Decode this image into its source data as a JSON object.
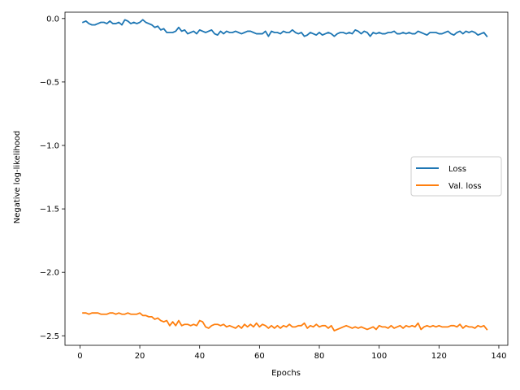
{
  "chart_data": {
    "type": "line",
    "xlabel": "Epochs",
    "ylabel": "Negative log-likelihood",
    "xlim": [
      -5,
      143
    ],
    "ylim": [
      -2.575,
      0.05
    ],
    "xticks": [
      0,
      20,
      40,
      60,
      80,
      100,
      120,
      140
    ],
    "yticks": [
      0.0,
      -0.5,
      -1.0,
      -1.5,
      -2.0,
      -2.5
    ],
    "xtick_labels": [
      "0",
      "20",
      "40",
      "60",
      "80",
      "100",
      "120",
      "140"
    ],
    "ytick_labels": [
      "0.0",
      "−0.5",
      "−1.0",
      "−1.5",
      "−2.0",
      "−2.5"
    ],
    "grid": false,
    "legend_position": "center-right",
    "series": [
      {
        "name": "Loss",
        "color": "#1f77b4",
        "x": [
          1,
          2,
          3,
          4,
          5,
          6,
          7,
          8,
          9,
          10,
          11,
          12,
          13,
          14,
          15,
          16,
          17,
          18,
          19,
          20,
          21,
          22,
          23,
          24,
          25,
          26,
          27,
          28,
          29,
          30,
          31,
          32,
          33,
          34,
          35,
          36,
          37,
          38,
          39,
          40,
          41,
          42,
          43,
          44,
          45,
          46,
          47,
          48,
          49,
          50,
          51,
          52,
          53,
          54,
          55,
          56,
          57,
          58,
          59,
          60,
          61,
          62,
          63,
          64,
          65,
          66,
          67,
          68,
          69,
          70,
          71,
          72,
          73,
          74,
          75,
          76,
          77,
          78,
          79,
          80,
          81,
          82,
          83,
          84,
          85,
          86,
          87,
          88,
          89,
          90,
          91,
          92,
          93,
          94,
          95,
          96,
          97,
          98,
          99,
          100,
          101,
          102,
          103,
          104,
          105,
          106,
          107,
          108,
          109,
          110,
          111,
          112,
          113,
          114,
          115,
          116,
          117,
          118,
          119,
          120,
          121,
          122,
          123,
          124,
          125,
          126,
          127,
          128,
          129,
          130,
          131,
          132,
          133,
          134,
          135,
          136
        ],
        "y": [
          -0.03,
          -0.02,
          -0.04,
          -0.05,
          -0.05,
          -0.04,
          -0.03,
          -0.03,
          -0.04,
          -0.02,
          -0.04,
          -0.04,
          -0.03,
          -0.05,
          -0.01,
          -0.02,
          -0.04,
          -0.03,
          -0.04,
          -0.03,
          -0.01,
          -0.03,
          -0.04,
          -0.05,
          -0.07,
          -0.06,
          -0.09,
          -0.08,
          -0.11,
          -0.11,
          -0.11,
          -0.1,
          -0.07,
          -0.1,
          -0.09,
          -0.12,
          -0.11,
          -0.1,
          -0.12,
          -0.09,
          -0.1,
          -0.11,
          -0.1,
          -0.09,
          -0.12,
          -0.13,
          -0.1,
          -0.12,
          -0.1,
          -0.11,
          -0.11,
          -0.1,
          -0.11,
          -0.12,
          -0.11,
          -0.1,
          -0.1,
          -0.11,
          -0.12,
          -0.12,
          -0.12,
          -0.1,
          -0.14,
          -0.1,
          -0.11,
          -0.11,
          -0.12,
          -0.1,
          -0.11,
          -0.11,
          -0.09,
          -0.11,
          -0.12,
          -0.11,
          -0.14,
          -0.13,
          -0.11,
          -0.12,
          -0.13,
          -0.11,
          -0.13,
          -0.12,
          -0.11,
          -0.12,
          -0.14,
          -0.12,
          -0.11,
          -0.11,
          -0.12,
          -0.11,
          -0.12,
          -0.09,
          -0.1,
          -0.12,
          -0.1,
          -0.11,
          -0.14,
          -0.11,
          -0.12,
          -0.11,
          -0.12,
          -0.12,
          -0.11,
          -0.11,
          -0.1,
          -0.12,
          -0.12,
          -0.11,
          -0.12,
          -0.11,
          -0.12,
          -0.12,
          -0.1,
          -0.11,
          -0.12,
          -0.13,
          -0.11,
          -0.11,
          -0.11,
          -0.12,
          -0.12,
          -0.11,
          -0.1,
          -0.12,
          -0.13,
          -0.11,
          -0.1,
          -0.12,
          -0.1,
          -0.11,
          -0.1,
          -0.11,
          -0.13,
          -0.12,
          -0.11,
          -0.14
        ]
      },
      {
        "name": "Val. loss",
        "color": "#ff7f0e",
        "x": [
          1,
          2,
          3,
          4,
          5,
          6,
          7,
          8,
          9,
          10,
          11,
          12,
          13,
          14,
          15,
          16,
          17,
          18,
          19,
          20,
          21,
          22,
          23,
          24,
          25,
          26,
          27,
          28,
          29,
          30,
          31,
          32,
          33,
          34,
          35,
          36,
          37,
          38,
          39,
          40,
          41,
          42,
          43,
          44,
          45,
          46,
          47,
          48,
          49,
          50,
          51,
          52,
          53,
          54,
          55,
          56,
          57,
          58,
          59,
          60,
          61,
          62,
          63,
          64,
          65,
          66,
          67,
          68,
          69,
          70,
          71,
          72,
          73,
          74,
          75,
          76,
          77,
          78,
          79,
          80,
          81,
          82,
          83,
          84,
          85,
          86,
          87,
          88,
          89,
          90,
          91,
          92,
          93,
          94,
          95,
          96,
          97,
          98,
          99,
          100,
          101,
          102,
          103,
          104,
          105,
          106,
          107,
          108,
          109,
          110,
          111,
          112,
          113,
          114,
          115,
          116,
          117,
          118,
          119,
          120,
          121,
          122,
          123,
          124,
          125,
          126,
          127,
          128,
          129,
          130,
          131,
          132,
          133,
          134,
          135,
          136
        ],
        "y": [
          -2.32,
          -2.32,
          -2.33,
          -2.32,
          -2.32,
          -2.32,
          -2.33,
          -2.33,
          -2.33,
          -2.32,
          -2.32,
          -2.33,
          -2.32,
          -2.33,
          -2.33,
          -2.32,
          -2.33,
          -2.33,
          -2.33,
          -2.32,
          -2.34,
          -2.34,
          -2.35,
          -2.35,
          -2.37,
          -2.36,
          -2.38,
          -2.39,
          -2.38,
          -2.42,
          -2.39,
          -2.42,
          -2.38,
          -2.42,
          -2.41,
          -2.41,
          -2.42,
          -2.41,
          -2.42,
          -2.38,
          -2.39,
          -2.43,
          -2.44,
          -2.42,
          -2.41,
          -2.41,
          -2.42,
          -2.41,
          -2.43,
          -2.42,
          -2.43,
          -2.44,
          -2.42,
          -2.44,
          -2.41,
          -2.43,
          -2.41,
          -2.43,
          -2.4,
          -2.43,
          -2.41,
          -2.42,
          -2.44,
          -2.42,
          -2.44,
          -2.42,
          -2.44,
          -2.42,
          -2.43,
          -2.41,
          -2.43,
          -2.43,
          -2.42,
          -2.42,
          -2.4,
          -2.44,
          -2.42,
          -2.43,
          -2.41,
          -2.43,
          -2.42,
          -2.42,
          -2.44,
          -2.42,
          -2.46,
          -2.45,
          -2.44,
          -2.43,
          -2.42,
          -2.43,
          -2.44,
          -2.43,
          -2.44,
          -2.43,
          -2.44,
          -2.45,
          -2.44,
          -2.43,
          -2.45,
          -2.42,
          -2.43,
          -2.43,
          -2.44,
          -2.42,
          -2.44,
          -2.43,
          -2.42,
          -2.44,
          -2.42,
          -2.43,
          -2.42,
          -2.43,
          -2.4,
          -2.45,
          -2.43,
          -2.42,
          -2.43,
          -2.42,
          -2.43,
          -2.42,
          -2.43,
          -2.43,
          -2.43,
          -2.42,
          -2.42,
          -2.43,
          -2.41,
          -2.44,
          -2.42,
          -2.43,
          -2.43,
          -2.44,
          -2.42,
          -2.43,
          -2.42,
          -2.45
        ]
      }
    ]
  }
}
